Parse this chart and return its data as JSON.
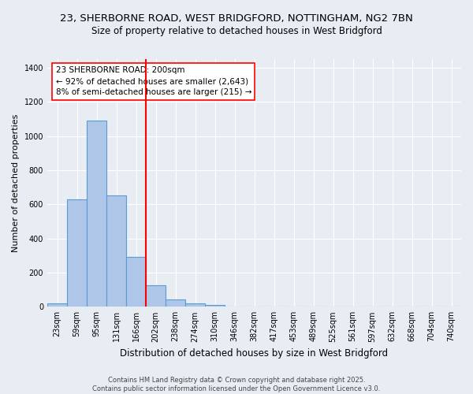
{
  "title_line1": "23, SHERBORNE ROAD, WEST BRIDGFORD, NOTTINGHAM, NG2 7BN",
  "title_line2": "Size of property relative to detached houses in West Bridgford",
  "xlabel": "Distribution of detached houses by size in West Bridgford",
  "ylabel": "Number of detached properties",
  "categories": [
    "23sqm",
    "59sqm",
    "95sqm",
    "131sqm",
    "166sqm",
    "202sqm",
    "238sqm",
    "274sqm",
    "310sqm",
    "346sqm",
    "382sqm",
    "417sqm",
    "453sqm",
    "489sqm",
    "525sqm",
    "561sqm",
    "597sqm",
    "632sqm",
    "668sqm",
    "704sqm",
    "740sqm"
  ],
  "values": [
    20,
    630,
    1090,
    650,
    290,
    125,
    45,
    20,
    10,
    0,
    0,
    0,
    0,
    0,
    0,
    0,
    0,
    0,
    0,
    0,
    0
  ],
  "bar_color": "#aec6e8",
  "bar_edge_color": "#5b9bd5",
  "vline_idx": 5,
  "vline_color": "red",
  "annotation_line1": "23 SHERBORNE ROAD: 200sqm",
  "annotation_line2": "← 92% of detached houses are smaller (2,643)",
  "annotation_line3": "8% of semi-detached houses are larger (215) →",
  "annotation_box_color": "white",
  "annotation_box_edge_color": "red",
  "ylim": [
    0,
    1450
  ],
  "yticks": [
    0,
    200,
    400,
    600,
    800,
    1000,
    1200,
    1400
  ],
  "background_color": "#e8edf4",
  "plot_background_color": "#e8edf4",
  "grid_color": "white",
  "footer_line1": "Contains HM Land Registry data © Crown copyright and database right 2025.",
  "footer_line2": "Contains public sector information licensed under the Open Government Licence v3.0.",
  "title_fontsize": 9.5,
  "subtitle_fontsize": 8.5,
  "ylabel_fontsize": 8,
  "xlabel_fontsize": 8.5,
  "tick_fontsize": 7,
  "annotation_fontsize": 7.5,
  "footer_fontsize": 6
}
